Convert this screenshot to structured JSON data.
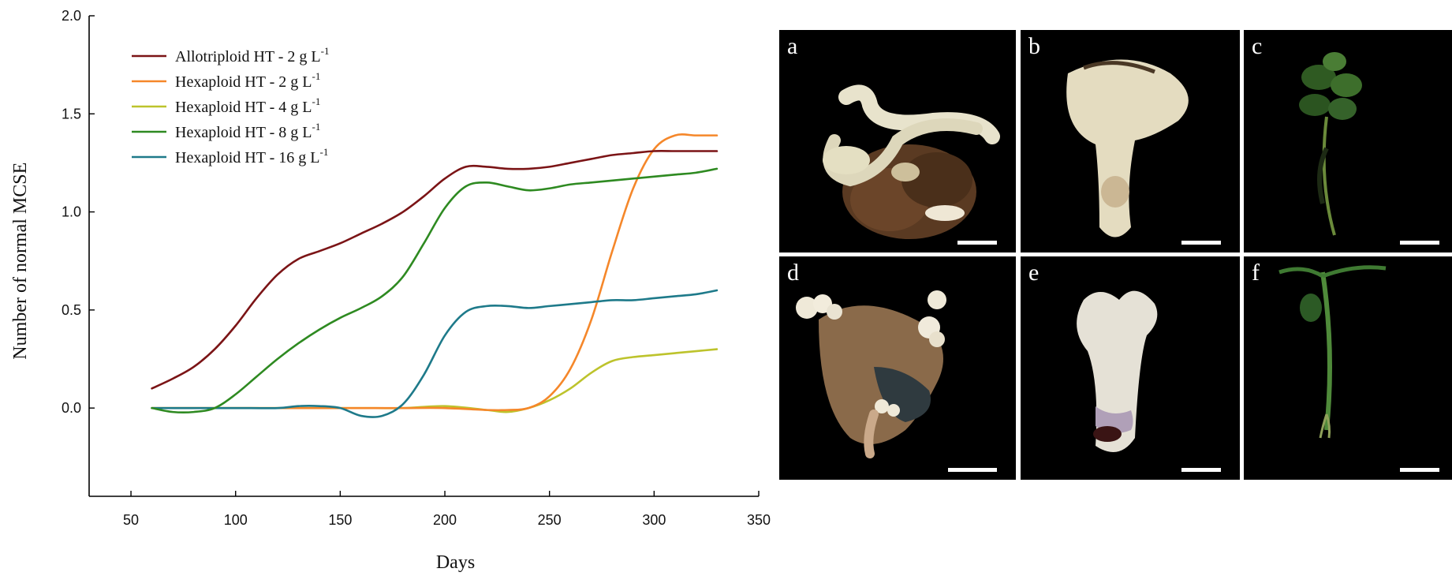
{
  "chart_data": {
    "type": "line",
    "xlabel": "Days",
    "ylabel": "Number of normal MCSE",
    "xlim": [
      30,
      350
    ],
    "ylim": [
      -0.45,
      2.0
    ],
    "xticks": [
      50,
      100,
      150,
      200,
      250,
      300,
      350
    ],
    "yticks": [
      0.0,
      0.5,
      1.0,
      1.5,
      2.0
    ],
    "xtick_labels": [
      "50",
      "100",
      "150",
      "200",
      "250",
      "300",
      "350"
    ],
    "ytick_labels": [
      "0.0",
      "0.5",
      "1.0",
      "1.5",
      "2.0"
    ],
    "legend_position": "top-left",
    "grid": false,
    "series": [
      {
        "name": "Allotriploid HT - 2 g L",
        "unit_superscript": "-1",
        "color": "#7b1416",
        "x": [
          60,
          70,
          80,
          90,
          100,
          110,
          120,
          130,
          140,
          150,
          160,
          170,
          180,
          190,
          200,
          210,
          220,
          230,
          240,
          250,
          260,
          270,
          280,
          290,
          300,
          310,
          320,
          330
        ],
        "y": [
          0.1,
          0.15,
          0.21,
          0.3,
          0.42,
          0.56,
          0.68,
          0.76,
          0.8,
          0.84,
          0.89,
          0.94,
          1.0,
          1.08,
          1.17,
          1.23,
          1.23,
          1.22,
          1.22,
          1.23,
          1.25,
          1.27,
          1.29,
          1.3,
          1.31,
          1.31,
          1.31,
          1.31
        ]
      },
      {
        "name": "Hexaploid HT - 2 g L",
        "unit_superscript": "-1",
        "color": "#f5872a",
        "x": [
          60,
          80,
          100,
          120,
          140,
          160,
          180,
          200,
          220,
          230,
          240,
          250,
          260,
          270,
          280,
          290,
          300,
          310,
          320,
          330
        ],
        "y": [
          0.0,
          0.0,
          0.0,
          0.0,
          0.0,
          0.0,
          0.0,
          0.0,
          -0.01,
          -0.01,
          0.0,
          0.06,
          0.2,
          0.45,
          0.8,
          1.12,
          1.32,
          1.39,
          1.39,
          1.39
        ]
      },
      {
        "name": "Hexaploid HT - 4 g L",
        "unit_superscript": "-1",
        "color": "#bdc32c",
        "x": [
          60,
          80,
          100,
          120,
          140,
          160,
          180,
          200,
          220,
          230,
          240,
          250,
          260,
          270,
          280,
          290,
          300,
          310,
          320,
          330
        ],
        "y": [
          0.0,
          0.0,
          0.0,
          0.0,
          0.0,
          0.0,
          0.0,
          0.01,
          -0.01,
          -0.02,
          0.0,
          0.04,
          0.1,
          0.18,
          0.24,
          0.26,
          0.27,
          0.28,
          0.29,
          0.3
        ]
      },
      {
        "name": "Hexaploid HT - 8 g L",
        "unit_superscript": "-1",
        "color": "#2e8a21",
        "x": [
          60,
          70,
          80,
          90,
          100,
          110,
          120,
          130,
          140,
          150,
          160,
          170,
          180,
          190,
          200,
          210,
          220,
          230,
          240,
          250,
          260,
          270,
          280,
          290,
          300,
          310,
          320,
          330
        ],
        "y": [
          0.0,
          -0.02,
          -0.02,
          0.0,
          0.07,
          0.16,
          0.25,
          0.33,
          0.4,
          0.46,
          0.51,
          0.57,
          0.67,
          0.84,
          1.02,
          1.13,
          1.15,
          1.13,
          1.11,
          1.12,
          1.14,
          1.15,
          1.16,
          1.17,
          1.18,
          1.19,
          1.2,
          1.22
        ]
      },
      {
        "name": "Hexaploid HT - 16 g L",
        "unit_superscript": "-1",
        "color": "#1e7a8a",
        "x": [
          60,
          80,
          100,
          120,
          130,
          140,
          150,
          160,
          170,
          180,
          190,
          200,
          210,
          220,
          230,
          240,
          250,
          260,
          270,
          280,
          290,
          300,
          310,
          320,
          330
        ],
        "y": [
          0.0,
          0.0,
          0.0,
          0.0,
          0.01,
          0.01,
          0.0,
          -0.04,
          -0.04,
          0.02,
          0.17,
          0.37,
          0.49,
          0.52,
          0.52,
          0.51,
          0.52,
          0.53,
          0.54,
          0.55,
          0.55,
          0.56,
          0.57,
          0.58,
          0.6
        ]
      }
    ]
  },
  "photo_panels": [
    {
      "letter": "a",
      "background": "#000000"
    },
    {
      "letter": "b",
      "background": "#000000"
    },
    {
      "letter": "c",
      "background": "#000000"
    },
    {
      "letter": "d",
      "background": "#000000"
    },
    {
      "letter": "e",
      "background": "#000000"
    },
    {
      "letter": "f",
      "background": "#000000"
    }
  ]
}
